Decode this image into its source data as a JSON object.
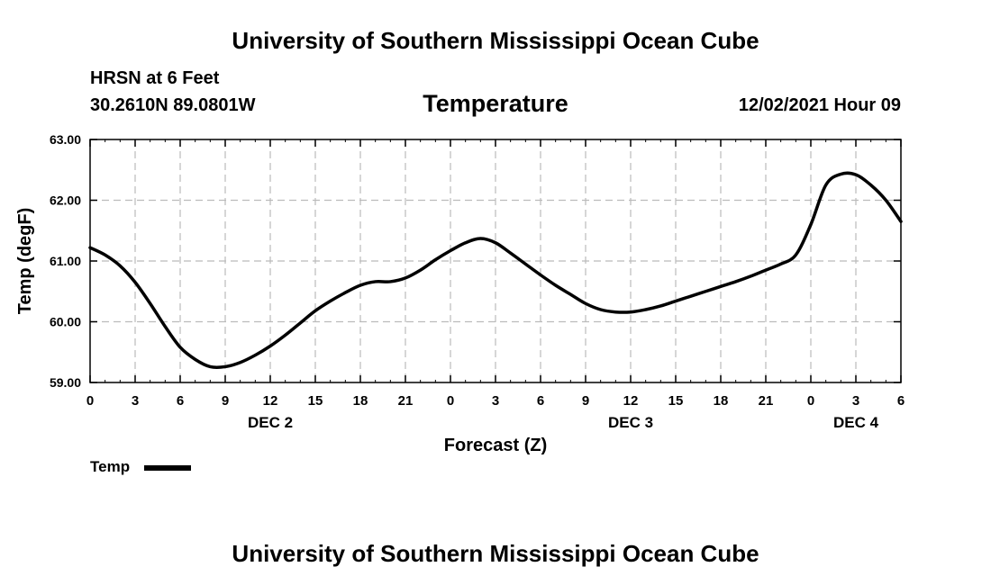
{
  "header": {
    "title": "University of Southern Mississippi Ocean Cube",
    "station": "HRSN at 6 Feet",
    "latlon": "30.2610N  89.0801W",
    "datetime": "12/02/2021 Hour 09"
  },
  "footer": {
    "title": "University of Southern Mississippi Ocean Cube"
  },
  "chart_data": {
    "type": "line",
    "title": "Temperature",
    "xlabel": "Forecast (Z)",
    "ylabel": "Temp (degF)",
    "ylim": [
      59.0,
      63.0
    ],
    "yticks": [
      "59.00",
      "60.00",
      "61.00",
      "62.00",
      "63.00"
    ],
    "xticks": [
      "0",
      "3",
      "6",
      "9",
      "12",
      "15",
      "18",
      "21",
      "0",
      "3",
      "6",
      "9",
      "12",
      "15",
      "18",
      "21",
      "0",
      "3",
      "6"
    ],
    "day_labels": [
      {
        "label": "DEC 2",
        "tick_index": 4
      },
      {
        "label": "DEC 3",
        "tick_index": 12
      },
      {
        "label": "DEC 4",
        "tick_index": 17
      }
    ],
    "grid": true,
    "legend": {
      "position": "bottom-left",
      "entries": [
        "Temp"
      ]
    },
    "series": [
      {
        "name": "Temp",
        "color": "#000000",
        "x": [
          0,
          1,
          2,
          3,
          4,
          5,
          6,
          7,
          8,
          9,
          10,
          11,
          12,
          13,
          14,
          15,
          16,
          17,
          18,
          19,
          20,
          21,
          22,
          23,
          24,
          25,
          26,
          27,
          28,
          29,
          30,
          31,
          32,
          33,
          34,
          35,
          36,
          37,
          38,
          39,
          40,
          41,
          42,
          43,
          44,
          45,
          46,
          47,
          48,
          49,
          50,
          51,
          52,
          53,
          54
        ],
        "values": [
          61.22,
          61.1,
          60.92,
          60.65,
          60.3,
          59.92,
          59.58,
          59.38,
          59.26,
          59.26,
          59.33,
          59.45,
          59.6,
          59.78,
          59.98,
          60.18,
          60.34,
          60.48,
          60.6,
          60.66,
          60.66,
          60.72,
          60.85,
          61.02,
          61.17,
          61.3,
          61.37,
          61.3,
          61.13,
          60.95,
          60.77,
          60.6,
          60.45,
          60.3,
          60.2,
          60.16,
          60.16,
          60.2,
          60.26,
          60.34,
          60.42,
          60.5,
          60.58,
          60.66,
          60.75,
          60.85,
          60.95,
          61.1,
          61.6,
          62.25,
          62.43,
          62.42,
          62.25,
          62.0,
          61.65
        ]
      }
    ]
  }
}
